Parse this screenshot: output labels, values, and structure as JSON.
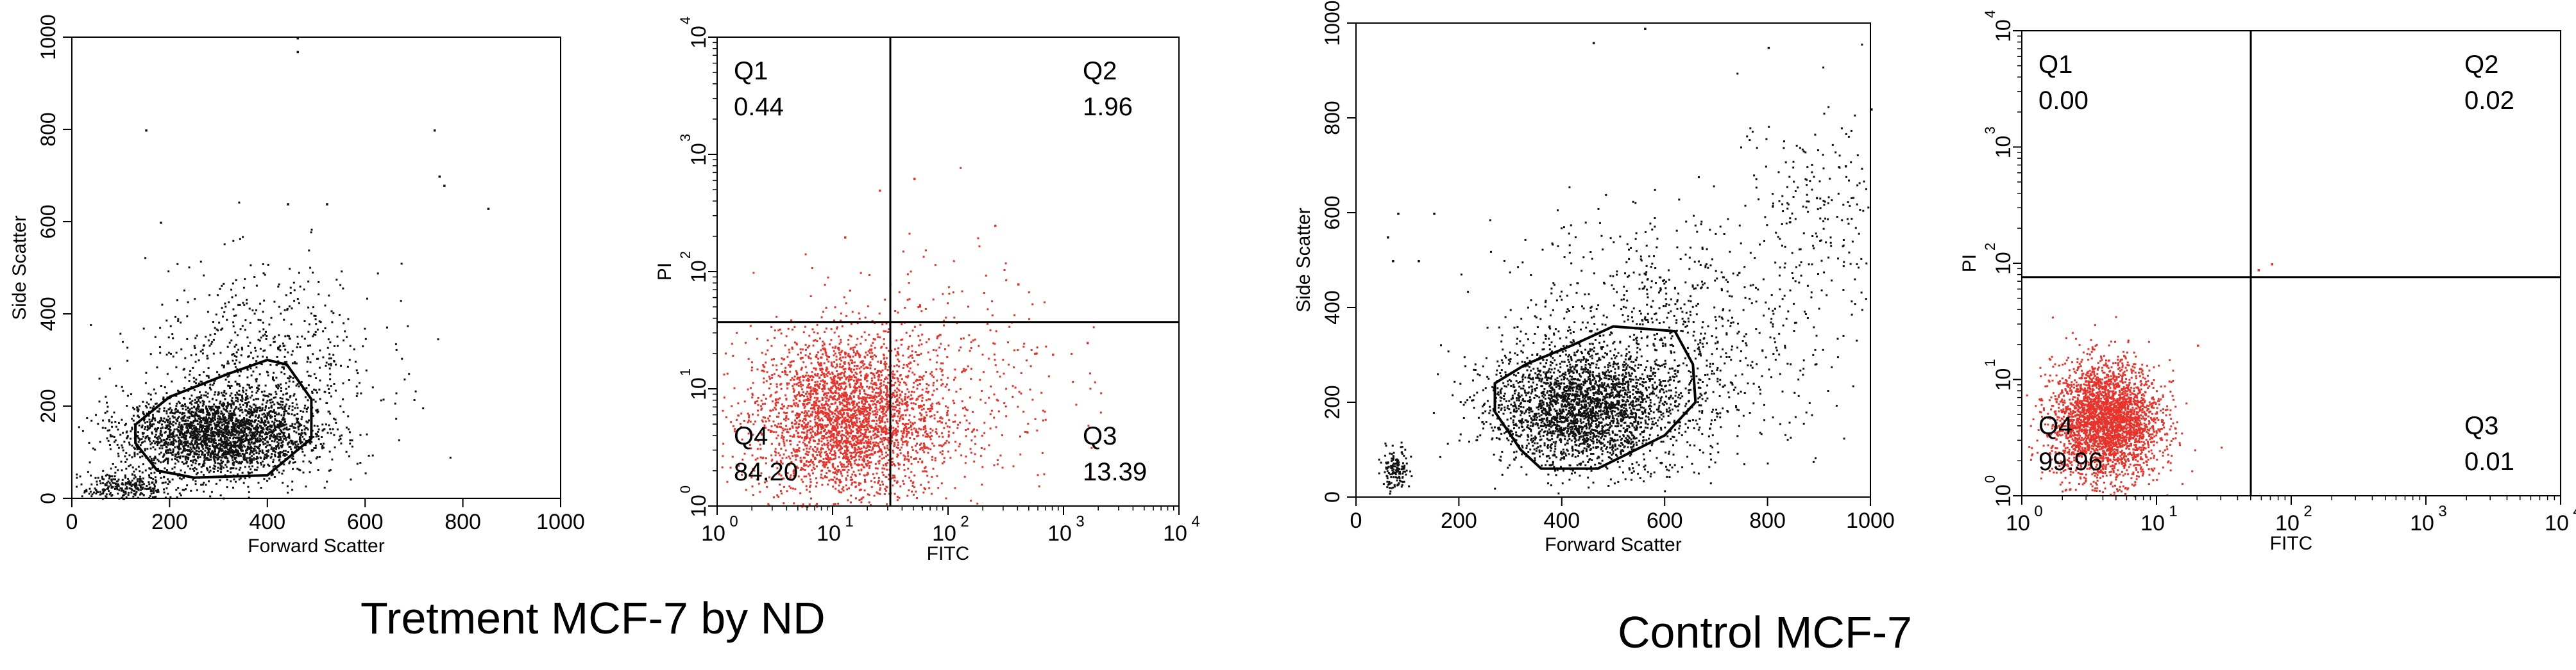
{
  "captions": {
    "treatment": "Tretment MCF-7 by ND",
    "control": "Control MCF-7"
  },
  "colors": {
    "scatter": "#111111",
    "annexin": "#e8322a",
    "axis": "#000000"
  },
  "chart_data": [
    {
      "id": "treat-scatter",
      "type": "scatter",
      "title": "",
      "xlabel": "Forward Scatter",
      "ylabel": "Side Scatter",
      "xlim": [
        0,
        1000
      ],
      "ylim": [
        0,
        1000
      ],
      "xticks": [
        "0",
        "200",
        "400",
        "600",
        "800",
        "1000"
      ],
      "yticks": [
        "0",
        "200",
        "400",
        "600",
        "800",
        "1000"
      ],
      "point_color": "scatter",
      "clusters": [
        {
          "cx": 300,
          "cy": 140,
          "sx": 95,
          "sy": 45,
          "n": 2600
        },
        {
          "cx": 390,
          "cy": 280,
          "sx": 120,
          "sy": 110,
          "n": 700
        },
        {
          "cx": 110,
          "cy": 25,
          "sx": 45,
          "sy": 18,
          "n": 300
        }
      ],
      "outliers": [
        [
          460,
          1000
        ],
        [
          460,
          970
        ],
        [
          150,
          800
        ],
        [
          740,
          800
        ],
        [
          750,
          700
        ],
        [
          760,
          680
        ],
        [
          440,
          640
        ],
        [
          180,
          600
        ],
        [
          850,
          630
        ],
        [
          520,
          640
        ]
      ],
      "gate": [
        [
          130,
          120
        ],
        [
          175,
          60
        ],
        [
          250,
          45
        ],
        [
          400,
          50
        ],
        [
          490,
          130
        ],
        [
          490,
          215
        ],
        [
          440,
          290
        ],
        [
          400,
          300
        ],
        [
          320,
          270
        ],
        [
          200,
          220
        ],
        [
          130,
          160
        ]
      ]
    },
    {
      "id": "treat-quadrant",
      "type": "scatter",
      "log": true,
      "xlabel": "FITC",
      "ylabel": "PI",
      "xlim": [
        0,
        4
      ],
      "ylim": [
        0,
        4
      ],
      "xticks": [
        "0",
        "1",
        "2",
        "3",
        "4"
      ],
      "yticks": [
        "0",
        "1",
        "2",
        "3",
        "4"
      ],
      "point_color": "annexin",
      "quadrant_divider": {
        "x": 1.5,
        "y": 1.57
      },
      "quadrants": [
        {
          "label": "Q1",
          "value": "0.44",
          "corner": "top-left"
        },
        {
          "label": "Q2",
          "value": "1.96",
          "corner": "top-right"
        },
        {
          "label": "Q3",
          "value": "13.39",
          "corner": "bottom-right"
        },
        {
          "label": "Q4",
          "value": "84.20",
          "corner": "bottom-left"
        }
      ],
      "clusters": [
        {
          "cx": 1.1,
          "cy": 0.75,
          "sx": 0.4,
          "sy": 0.35,
          "n": 3000
        },
        {
          "cx": 1.9,
          "cy": 1.1,
          "sx": 0.55,
          "sy": 0.5,
          "n": 400
        }
      ],
      "outliers": [
        [
          1.4,
          2.7
        ],
        [
          2.4,
          2.4
        ],
        [
          1.7,
          2.8
        ],
        [
          2.9,
          1.3
        ],
        [
          3.2,
          1.4
        ],
        [
          1.1,
          2.3
        ],
        [
          2.6,
          1.9
        ]
      ]
    },
    {
      "id": "ctrl-scatter",
      "type": "scatter",
      "xlabel": "Forward Scatter",
      "ylabel": "Side Scatter",
      "xlim": [
        0,
        1000
      ],
      "ylim": [
        0,
        1000
      ],
      "xticks": [
        "0",
        "200",
        "400",
        "600",
        "800",
        "1000"
      ],
      "yticks": [
        "0",
        "200",
        "400",
        "600",
        "800",
        "1000"
      ],
      "point_color": "scatter",
      "clusters": [
        {
          "cx": 440,
          "cy": 190,
          "sx": 90,
          "sy": 60,
          "n": 2600
        },
        {
          "cx": 600,
          "cy": 330,
          "sx": 150,
          "sy": 130,
          "n": 900
        },
        {
          "cx": 75,
          "cy": 60,
          "sx": 12,
          "sy": 20,
          "n": 150
        },
        {
          "cx": 900,
          "cy": 600,
          "sx": 80,
          "sy": 120,
          "n": 200
        }
      ],
      "outliers": [
        [
          60,
          550
        ],
        [
          70,
          500
        ],
        [
          80,
          600
        ],
        [
          800,
          950
        ],
        [
          1000,
          820
        ],
        [
          560,
          990
        ],
        [
          460,
          960
        ],
        [
          150,
          600
        ],
        [
          120,
          500
        ],
        [
          950,
          700
        ]
      ],
      "gate": [
        [
          270,
          180
        ],
        [
          320,
          100
        ],
        [
          360,
          60
        ],
        [
          470,
          60
        ],
        [
          600,
          130
        ],
        [
          660,
          200
        ],
        [
          655,
          280
        ],
        [
          620,
          350
        ],
        [
          500,
          360
        ],
        [
          420,
          320
        ],
        [
          330,
          280
        ],
        [
          270,
          240
        ]
      ]
    },
    {
      "id": "ctrl-quadrant",
      "type": "scatter",
      "log": true,
      "xlabel": "FITC",
      "ylabel": "PI",
      "xlim": [
        0,
        4
      ],
      "ylim": [
        0,
        4
      ],
      "xticks": [
        "0",
        "1",
        "2",
        "3",
        "4"
      ],
      "yticks": [
        "0",
        "1",
        "2",
        "3",
        "4"
      ],
      "point_color": "annexin",
      "quadrant_divider": {
        "x": 1.7,
        "y": 1.88
      },
      "quadrants": [
        {
          "label": "Q1",
          "value": "0.00",
          "corner": "top-left"
        },
        {
          "label": "Q2",
          "value": "0.02",
          "corner": "top-right"
        },
        {
          "label": "Q3",
          "value": "0.01",
          "corner": "bottom-right"
        },
        {
          "label": "Q4",
          "value": "99.96",
          "corner": "bottom-left"
        }
      ],
      "clusters": [
        {
          "cx": 0.62,
          "cy": 0.65,
          "sx": 0.2,
          "sy": 0.25,
          "n": 3000
        }
      ],
      "outliers": [
        [
          1.75,
          1.95
        ],
        [
          1.85,
          2.0
        ],
        [
          1.3,
          1.3
        ]
      ]
    }
  ]
}
